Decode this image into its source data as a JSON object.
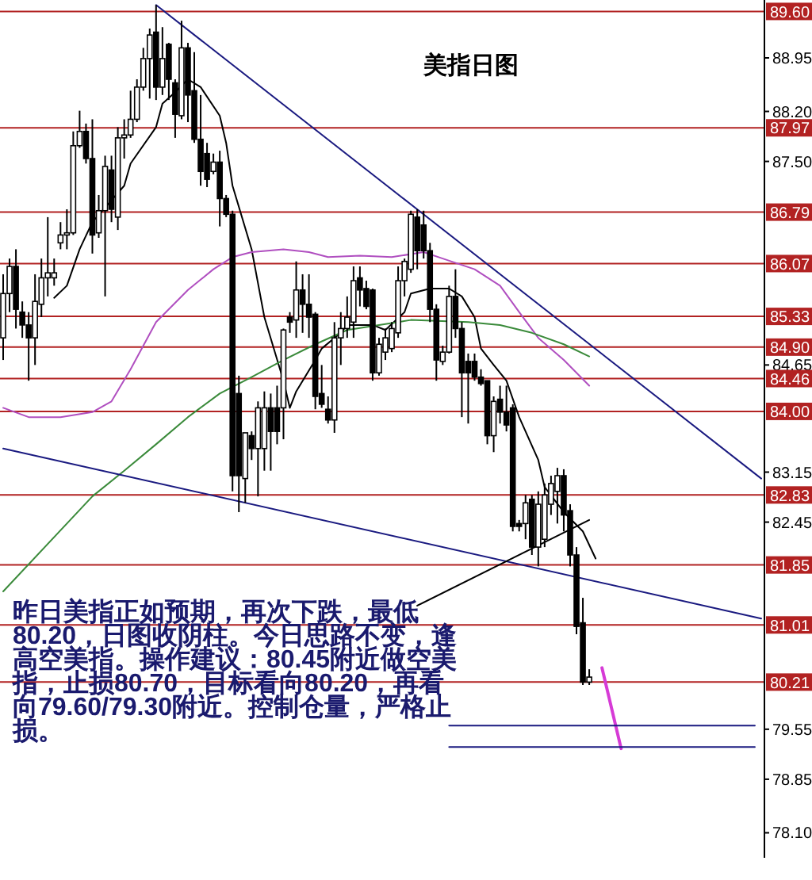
{
  "chart_data": {
    "type": "candlestick",
    "title": "美指日图",
    "color": "#000000",
    "categories": [
      null,
      null,
      null,
      null,
      null,
      null,
      null,
      null,
      null,
      null,
      null,
      null,
      null,
      null,
      null,
      null,
      null,
      null,
      null,
      null,
      null,
      null,
      null,
      null,
      null,
      null,
      null,
      null,
      null,
      null,
      null,
      null,
      null,
      null,
      null,
      null,
      null,
      null,
      null,
      null,
      null,
      null,
      null,
      null,
      null,
      null,
      null,
      null,
      null,
      null,
      null,
      null,
      null,
      null,
      null,
      null,
      null,
      null,
      null,
      null,
      null,
      null,
      null,
      null,
      null,
      null,
      null,
      null,
      null,
      null,
      null,
      null,
      null,
      null,
      null,
      null,
      null,
      null,
      null,
      null,
      null,
      null,
      null,
      null,
      null,
      null,
      null,
      null,
      null,
      null,
      null,
      null,
      null,
      null,
      null,
      null,
      null,
      null,
      null,
      null,
      null,
      null,
      null,
      null,
      null,
      null,
      null,
      null,
      null,
      null,
      null,
      null,
      null,
      null,
      null,
      null,
      null,
      null,
      null,
      null
    ],
    "ohlc": [
      [
        85.03,
        85.92,
        84.72,
        85.65
      ],
      [
        85.65,
        86.14,
        85.39,
        86.03
      ],
      [
        86.03,
        86.27,
        85.16,
        85.43
      ],
      [
        85.39,
        85.54,
        85.03,
        85.21
      ],
      [
        85.21,
        85.39,
        84.43,
        85.03
      ],
      [
        85.03,
        85.92,
        84.65,
        85.54
      ],
      [
        85.5,
        86.14,
        85.32,
        85.87
      ],
      [
        85.87,
        86.72,
        85.61,
        85.94
      ],
      [
        85.87,
        86.14,
        85.76,
        85.94
      ],
      [
        86.36,
        86.65,
        86.27,
        86.47
      ],
      [
        86.47,
        86.83,
        86.27,
        86.5
      ],
      [
        86.5,
        87.92,
        86.47,
        87.72
      ],
      [
        87.72,
        88.21,
        87.69,
        87.92
      ],
      [
        87.92,
        88.03,
        87.47,
        87.54
      ],
      [
        87.54,
        88.09,
        86.21,
        86.47
      ],
      [
        86.5,
        87.03,
        86.43,
        86.81
      ],
      [
        86.81,
        87.58,
        85.61,
        87.43
      ],
      [
        87.38,
        87.58,
        86.65,
        86.83
      ],
      [
        86.72,
        87.98,
        86.54,
        87.83
      ],
      [
        87.83,
        88.09,
        87.54,
        87.87
      ],
      [
        87.87,
        88.49,
        87.83,
        88.09
      ],
      [
        88.09,
        88.65,
        88.05,
        88.54
      ],
      [
        88.54,
        89.09,
        88.49,
        88.94
      ],
      [
        88.94,
        89.36,
        88.38,
        89.27
      ],
      [
        89.31,
        89.69,
        88.36,
        88.54
      ],
      [
        88.54,
        89.38,
        88.43,
        88.94
      ],
      [
        89.14,
        89.16,
        88.36,
        88.65
      ],
      [
        88.6,
        88.65,
        87.83,
        88.16
      ],
      [
        88.14,
        89.47,
        88.09,
        89.09
      ],
      [
        89.09,
        89.16,
        88.05,
        88.43
      ],
      [
        88.49,
        89.03,
        87.76,
        87.81
      ],
      [
        87.81,
        88.43,
        87.16,
        87.36
      ],
      [
        87.61,
        87.76,
        87.14,
        87.25
      ],
      [
        87.36,
        87.61,
        87.32,
        87.49
      ],
      [
        87.49,
        87.65,
        86.59,
        86.98
      ],
      [
        86.98,
        87.03,
        86.72,
        86.76
      ],
      [
        86.76,
        86.81,
        82.88,
        83.1
      ],
      [
        84.25,
        84.5,
        82.59,
        83.1
      ],
      [
        83.06,
        83.7,
        82.72,
        83.7
      ],
      [
        83.66,
        83.72,
        83.32,
        83.48
      ],
      [
        83.48,
        84.14,
        82.81,
        84.05
      ],
      [
        83.48,
        84.28,
        83.17,
        84.05
      ],
      [
        84.05,
        84.25,
        83.17,
        83.72
      ],
      [
        84.05,
        84.36,
        83.54,
        83.72
      ],
      [
        84.05,
        85.16,
        83.61,
        85.14
      ],
      [
        85.32,
        85.39,
        85.1,
        85.25
      ],
      [
        85.28,
        86.1,
        85.03,
        85.7
      ],
      [
        85.7,
        85.92,
        85.1,
        85.5
      ],
      [
        85.5,
        85.92,
        85.03,
        85.32
      ],
      [
        85.36,
        85.39,
        84.03,
        84.21
      ],
      [
        84.25,
        84.65,
        84.05,
        84.1
      ],
      [
        84.03,
        84.21,
        83.83,
        83.88
      ],
      [
        83.88,
        85.25,
        83.7,
        85.03
      ],
      [
        85.03,
        85.39,
        84.65,
        85.16
      ],
      [
        85.16,
        85.61,
        85.03,
        85.32
      ],
      [
        85.25,
        86.03,
        85.03,
        85.83
      ],
      [
        85.87,
        86.03,
        85.47,
        85.7
      ],
      [
        85.72,
        85.83,
        85.43,
        85.47
      ],
      [
        85.7,
        85.72,
        84.43,
        84.54
      ],
      [
        84.54,
        85.03,
        84.5,
        84.94
      ],
      [
        84.83,
        85.16,
        84.72,
        85.03
      ],
      [
        84.88,
        85.25,
        84.83,
        85.16
      ],
      [
        85.1,
        86.03,
        85.03,
        85.83
      ],
      [
        85.83,
        86.14,
        85.61,
        86.1
      ],
      [
        85.99,
        86.81,
        85.94,
        86.76
      ],
      [
        86.72,
        86.83,
        85.99,
        86.25
      ],
      [
        86.61,
        86.81,
        86.14,
        86.25
      ],
      [
        86.25,
        86.36,
        85.25,
        85.43
      ],
      [
        85.43,
        85.5,
        84.43,
        84.72
      ],
      [
        84.7,
        84.92,
        84.65,
        84.83
      ],
      [
        84.83,
        85.76,
        84.81,
        85.61
      ],
      [
        85.61,
        85.99,
        85.03,
        85.16
      ],
      [
        85.16,
        85.25,
        83.92,
        84.54
      ],
      [
        84.7,
        84.81,
        83.83,
        84.54
      ],
      [
        84.7,
        84.81,
        84.43,
        84.48
      ],
      [
        84.48,
        84.59,
        84.36,
        84.39
      ],
      [
        84.43,
        84.43,
        83.54,
        83.66
      ],
      [
        83.66,
        84.21,
        83.43,
        84.14
      ],
      [
        84.17,
        84.36,
        83.83,
        83.99
      ],
      [
        83.99,
        84.36,
        83.72,
        83.81
      ],
      [
        84.05,
        84.1,
        82.32,
        82.39
      ],
      [
        82.43,
        82.48,
        82.32,
        82.39
      ],
      [
        82.43,
        82.83,
        82.21,
        82.72
      ],
      [
        82.77,
        82.83,
        81.99,
        82.1
      ],
      [
        82.1,
        82.88,
        81.83,
        82.7
      ],
      [
        82.21,
        82.99,
        82.1,
        82.83
      ],
      [
        82.7,
        83.1,
        82.55,
        82.99
      ],
      [
        82.88,
        83.21,
        82.43,
        83.1
      ],
      [
        83.1,
        83.19,
        82.32,
        82.55
      ],
      [
        82.61,
        82.7,
        81.83,
        81.99
      ],
      [
        81.99,
        82.1,
        80.88,
        80.99
      ],
      [
        81.04,
        81.39,
        80.17,
        80.21
      ],
      [
        80.21,
        80.39,
        80.17,
        80.28
      ],
      null,
      null,
      null,
      null,
      null,
      null,
      null,
      null,
      null,
      null,
      null,
      null,
      null,
      null,
      null,
      null,
      null,
      null,
      null,
      null,
      null,
      null,
      null,
      null,
      null,
      null,
      null
    ],
    "series": [
      {
        "type": "line",
        "color": "#000000",
        "values": [
          null,
          null,
          null,
          null,
          null,
          null,
          null,
          null,
          85.59,
          null,
          85.76,
          null,
          86.27,
          null,
          86.65,
          null,
          null,
          null,
          null,
          87.16,
          87.47,
          null,
          null,
          null,
          87.98,
          88.31,
          null,
          88.47,
          null,
          88.65,
          null,
          88.54,
          null,
          null,
          88.14,
          87.76,
          87.16,
          null,
          null,
          86.27,
          null,
          85.32,
          null,
          null,
          84.43,
          84.05,
          84.28,
          null,
          null,
          84.72,
          84.88,
          null,
          null,
          85.1,
          85.21,
          null,
          null,
          null,
          85.21,
          null,
          85.14,
          null,
          null,
          85.39,
          85.65,
          null,
          null,
          85.72,
          null,
          null,
          85.72,
          null,
          85.61,
          null,
          85.32,
          84.88,
          null,
          84.65,
          null,
          84.43,
          null,
          83.92,
          null,
          null,
          83.32,
          82.94,
          null,
          null,
          82.59,
          null,
          null,
          82.32,
          null,
          81.94,
          null,
          null,
          null,
          null,
          null,
          null,
          null,
          null,
          null,
          null,
          null,
          null,
          null,
          null,
          null,
          null,
          null,
          null,
          null,
          null,
          null,
          null,
          null,
          null,
          null,
          null
        ]
      },
      {
        "type": "line",
        "color": "#b04fc0",
        "values": [
          84.05,
          null,
          null,
          null,
          83.92,
          null,
          null,
          null,
          null,
          83.92,
          null,
          null,
          null,
          null,
          83.99,
          null,
          null,
          84.14,
          null,
          null,
          84.59,
          null,
          null,
          null,
          85.25,
          null,
          null,
          null,
          null,
          85.7,
          null,
          null,
          null,
          85.99,
          null,
          null,
          86.16,
          null,
          null,
          86.23,
          null,
          null,
          null,
          null,
          86.27,
          null,
          null,
          null,
          86.23,
          null,
          null,
          86.16,
          null,
          null,
          null,
          null,
          86.18,
          null,
          null,
          null,
          null,
          86.16,
          null,
          null,
          null,
          null,
          86.23,
          null,
          null,
          86.14,
          null,
          null,
          null,
          null,
          85.99,
          null,
          null,
          null,
          85.76,
          null,
          null,
          85.39,
          null,
          null,
          85.03,
          null,
          null,
          null,
          84.72,
          null,
          null,
          null,
          84.36,
          null,
          null,
          null,
          null,
          null,
          null,
          null,
          null,
          null,
          null,
          null,
          null,
          null,
          null,
          null,
          null,
          null,
          null,
          null,
          null,
          null,
          null,
          null,
          null,
          null,
          null,
          null
        ]
      },
      {
        "type": "line",
        "color": "#3a8a3a",
        "values": [
          81.48,
          null,
          null,
          null,
          null,
          null,
          null,
          null,
          null,
          null,
          82.43,
          null,
          null,
          null,
          82.81,
          null,
          null,
          null,
          null,
          83.17,
          null,
          null,
          null,
          null,
          83.54,
          null,
          null,
          null,
          null,
          83.92,
          null,
          null,
          null,
          null,
          84.25,
          null,
          null,
          null,
          null,
          84.48,
          null,
          null,
          null,
          null,
          84.72,
          null,
          null,
          null,
          null,
          84.94,
          null,
          null,
          null,
          null,
          85.14,
          null,
          null,
          null,
          null,
          85.21,
          null,
          null,
          null,
          null,
          85.28,
          null,
          null,
          null,
          null,
          null,
          null,
          null,
          null,
          85.25,
          null,
          null,
          null,
          null,
          85.21,
          null,
          null,
          null,
          null,
          85.1,
          null,
          null,
          null,
          null,
          84.94,
          null,
          null,
          null,
          84.77,
          null,
          null,
          null,
          null,
          null,
          null,
          null,
          null,
          null,
          null,
          null,
          null,
          null,
          null,
          null,
          null,
          null,
          null,
          null,
          null,
          null,
          null,
          null,
          null,
          null,
          null,
          null
        ]
      },
      {
        "type": "line",
        "color": "#1a1a80",
        "values": [
          null,
          null,
          null,
          null,
          null,
          null,
          null,
          null,
          null,
          null,
          null,
          null,
          null,
          null,
          null,
          null,
          null,
          null,
          null,
          null,
          null,
          null,
          null,
          null,
          89.69,
          null,
          null,
          null,
          null,
          null,
          null,
          null,
          null,
          null,
          null,
          null,
          null,
          null,
          null,
          null,
          null,
          null,
          null,
          null,
          null,
          null,
          null,
          null,
          null,
          null,
          null,
          null,
          null,
          null,
          null,
          null,
          null,
          null,
          null,
          null,
          null,
          null,
          null,
          null,
          null,
          null,
          null,
          null,
          null,
          null,
          null,
          null,
          null,
          null,
          null,
          null,
          null,
          null,
          null,
          null,
          null,
          null,
          null,
          null,
          null,
          null,
          null,
          null,
          null,
          null,
          null,
          null,
          null,
          null,
          null,
          null,
          null,
          null,
          null,
          null,
          null,
          null,
          null,
          null,
          null,
          null,
          null,
          null,
          null,
          null,
          null,
          null,
          null,
          null,
          null,
          null,
          null,
          null,
          null,
          83.06
        ]
      },
      {
        "type": "line",
        "color": "#1a1a80",
        "values": [
          83.48,
          null,
          null,
          null,
          null,
          null,
          null,
          null,
          null,
          null,
          null,
          null,
          null,
          null,
          null,
          null,
          null,
          null,
          null,
          null,
          null,
          null,
          null,
          null,
          null,
          null,
          null,
          null,
          null,
          null,
          null,
          null,
          null,
          null,
          null,
          null,
          null,
          null,
          null,
          null,
          null,
          null,
          null,
          null,
          null,
          null,
          null,
          null,
          null,
          null,
          null,
          null,
          null,
          null,
          null,
          null,
          null,
          null,
          null,
          null,
          null,
          null,
          null,
          null,
          null,
          null,
          null,
          null,
          null,
          null,
          null,
          null,
          null,
          null,
          null,
          null,
          null,
          null,
          null,
          null,
          null,
          null,
          null,
          null,
          null,
          null,
          null,
          null,
          null,
          null,
          null,
          null,
          null,
          null,
          null,
          null,
          null,
          null,
          null,
          null,
          null,
          null,
          null,
          null,
          null,
          null,
          null,
          null,
          null,
          null,
          null,
          null,
          null,
          null,
          null,
          null,
          null,
          null,
          null,
          81.1
        ]
      },
      {
        "type": "line",
        "color": "#000000",
        "values": [
          null,
          null,
          null,
          null,
          null,
          null,
          null,
          null,
          null,
          null,
          null,
          null,
          null,
          null,
          null,
          null,
          null,
          null,
          null,
          null,
          null,
          null,
          null,
          null,
          null,
          null,
          null,
          null,
          null,
          null,
          null,
          null,
          null,
          null,
          null,
          null,
          null,
          null,
          null,
          null,
          null,
          null,
          null,
          null,
          null,
          null,
          null,
          null,
          null,
          null,
          null,
          null,
          null,
          null,
          null,
          null,
          null,
          null,
          null,
          null,
          null,
          null,
          null,
          null,
          null,
          81.28,
          null,
          null,
          null,
          null,
          null,
          null,
          null,
          null,
          null,
          null,
          null,
          null,
          null,
          null,
          null,
          null,
          null,
          null,
          null,
          null,
          null,
          null,
          null,
          null,
          null,
          null,
          82.48,
          null,
          null,
          null,
          null,
          null,
          null,
          null,
          null,
          null,
          null,
          null,
          null,
          null,
          null,
          null,
          null,
          null,
          null,
          null,
          null,
          null,
          null,
          null,
          null,
          null,
          null,
          null
        ]
      },
      {
        "type": "line",
        "color": "#d63bd6",
        "values": [
          null,
          null,
          null,
          null,
          null,
          null,
          null,
          null,
          null,
          null,
          null,
          null,
          null,
          null,
          null,
          null,
          null,
          null,
          null,
          null,
          null,
          null,
          null,
          null,
          null,
          null,
          null,
          null,
          null,
          null,
          null,
          null,
          null,
          null,
          null,
          null,
          null,
          null,
          null,
          null,
          null,
          null,
          null,
          null,
          null,
          null,
          null,
          null,
          null,
          null,
          null,
          null,
          null,
          null,
          null,
          null,
          null,
          null,
          null,
          null,
          null,
          null,
          null,
          null,
          null,
          null,
          null,
          null,
          null,
          null,
          null,
          null,
          null,
          null,
          null,
          null,
          null,
          null,
          null,
          null,
          null,
          null,
          null,
          null,
          null,
          null,
          null,
          null,
          null,
          null,
          null,
          null,
          null,
          null,
          80.41,
          null,
          null,
          79.28,
          null,
          null,
          null,
          null,
          null,
          null,
          null,
          null,
          null,
          null,
          null,
          null,
          null,
          null,
          null,
          null,
          null,
          null,
          null,
          null,
          null,
          null
        ]
      },
      {
        "type": "line",
        "color": "#1a1a80",
        "values": [
          null,
          null,
          null,
          null,
          null,
          null,
          null,
          null,
          null,
          null,
          null,
          null,
          null,
          null,
          null,
          null,
          null,
          null,
          null,
          null,
          null,
          null,
          null,
          null,
          null,
          null,
          null,
          null,
          null,
          null,
          null,
          null,
          null,
          null,
          null,
          null,
          null,
          null,
          null,
          null,
          null,
          null,
          null,
          null,
          null,
          null,
          null,
          null,
          null,
          null,
          null,
          null,
          null,
          null,
          null,
          null,
          null,
          null,
          null,
          null,
          null,
          null,
          null,
          null,
          null,
          null,
          null,
          null,
          null,
          null,
          79.6,
          null,
          null,
          null,
          null,
          null,
          null,
          null,
          null,
          null,
          null,
          null,
          null,
          null,
          null,
          null,
          null,
          null,
          null,
          null,
          null,
          null,
          null,
          null,
          null,
          null,
          null,
          null,
          null,
          null,
          null,
          null,
          null,
          null,
          null,
          null,
          null,
          null,
          null,
          null,
          null,
          null,
          null,
          null,
          null,
          null,
          null,
          null,
          79.6,
          null
        ]
      },
      {
        "type": "line",
        "color": "#1a1a80",
        "values": [
          null,
          null,
          null,
          null,
          null,
          null,
          null,
          null,
          null,
          null,
          null,
          null,
          null,
          null,
          null,
          null,
          null,
          null,
          null,
          null,
          null,
          null,
          null,
          null,
          null,
          null,
          null,
          null,
          null,
          null,
          null,
          null,
          null,
          null,
          null,
          null,
          null,
          null,
          null,
          null,
          null,
          null,
          null,
          null,
          null,
          null,
          null,
          null,
          null,
          null,
          null,
          null,
          null,
          null,
          null,
          null,
          null,
          null,
          null,
          null,
          null,
          null,
          null,
          null,
          null,
          null,
          null,
          null,
          null,
          null,
          79.3,
          null,
          null,
          null,
          null,
          null,
          null,
          null,
          null,
          null,
          null,
          null,
          null,
          null,
          null,
          null,
          null,
          null,
          null,
          null,
          null,
          null,
          null,
          null,
          null,
          null,
          null,
          null,
          null,
          null,
          null,
          null,
          null,
          null,
          null,
          null,
          null,
          null,
          null,
          null,
          null,
          null,
          null,
          null,
          null,
          null,
          null,
          null,
          79.3,
          null
        ]
      }
    ],
    "ylim": [
      77.75,
      89.76
    ],
    "yticks": [
      {
        "value": 88.95,
        "label": "88.95"
      },
      {
        "value": 88.2,
        "label": "88.20"
      },
      {
        "value": 87.5,
        "label": "87.50"
      },
      {
        "value": 84.65,
        "label": "84.65"
      },
      {
        "value": 83.15,
        "label": "83.15"
      },
      {
        "value": 82.45,
        "label": "82.45"
      },
      {
        "value": 79.55,
        "label": "79.55"
      },
      {
        "value": 78.85,
        "label": "78.85"
      },
      {
        "value": 78.1,
        "label": "78.10"
      }
    ],
    "tick_labels": "y",
    "ref_lines": [
      {
        "axis": "y",
        "value": 89.6,
        "label": "89.60",
        "color": "#b22222"
      },
      {
        "axis": "y",
        "value": 87.97,
        "label": "87.97",
        "color": "#b22222"
      },
      {
        "axis": "y",
        "value": 86.79,
        "label": "86.79",
        "color": "#b22222"
      },
      {
        "axis": "y",
        "value": 86.07,
        "label": "86.07",
        "color": "#b22222"
      },
      {
        "axis": "y",
        "value": 85.33,
        "label": "85.33",
        "color": "#b22222"
      },
      {
        "axis": "y",
        "value": 84.9,
        "label": "84.90",
        "color": "#b22222"
      },
      {
        "axis": "y",
        "value": 84.46,
        "label": "84.46",
        "color": "#b22222"
      },
      {
        "axis": "y",
        "value": 84.0,
        "label": "84.00",
        "color": "#b22222"
      },
      {
        "axis": "y",
        "value": 82.83,
        "label": "82.83",
        "color": "#b22222"
      },
      {
        "axis": "y",
        "value": 81.85,
        "label": "81.85",
        "color": "#b22222"
      },
      {
        "axis": "y",
        "value": 81.01,
        "label": "81.01",
        "color": "#b22222"
      },
      {
        "axis": "y",
        "value": 80.21,
        "label": "80.21",
        "color": "#b22222"
      }
    ],
    "annotations": [
      "昨日美指正如预期，再次下跌，最低80.20，日图收阴柱。今日思路不变，逢高空美指。操作建议：80.45附近做空美指，止损80.70，目标看向80.20，再看向79.60/79.30附近。控制仓量，严格止损。"
    ]
  }
}
